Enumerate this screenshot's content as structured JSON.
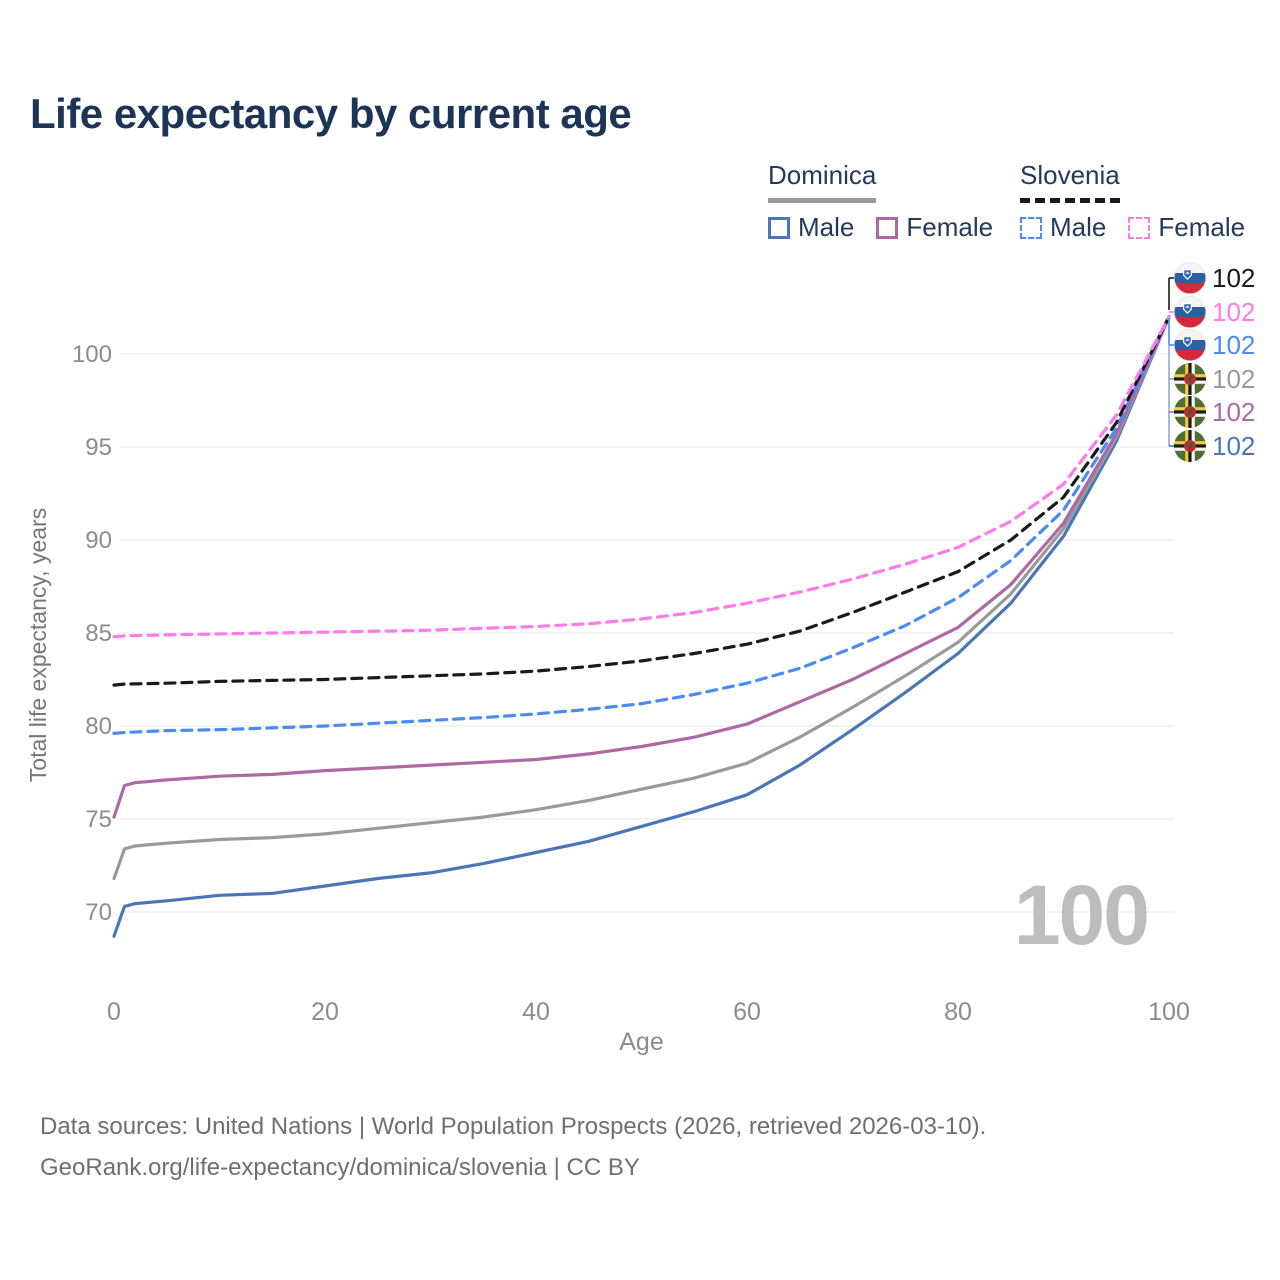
{
  "title": "Life expectancy by current age",
  "watermark_age": "100",
  "legend": {
    "groups": [
      {
        "name": "Dominica",
        "line_style": "solid",
        "swatch_color": "#9a9a9a",
        "items": [
          {
            "label": "Male",
            "color": "#4a76b8",
            "style": "solid"
          },
          {
            "label": "Female",
            "color": "#ad69a4",
            "style": "solid"
          }
        ]
      },
      {
        "name": "Slovenia",
        "line_style": "dashed",
        "swatch_color": "#1a1a1a",
        "items": [
          {
            "label": "Male",
            "color": "#4b8bf4",
            "style": "dashed"
          },
          {
            "label": "Female",
            "color": "#ff7ce8",
            "style": "dashed"
          }
        ]
      }
    ]
  },
  "chart_data": {
    "type": "line",
    "title": "Life expectancy by current age",
    "xlabel": "Age",
    "ylabel": "Total life expectancy, years",
    "x_ticks": [
      0,
      20,
      40,
      60,
      80,
      100
    ],
    "y_ticks": [
      70,
      75,
      80,
      85,
      90,
      95,
      100
    ],
    "xlim": [
      0,
      100
    ],
    "ylim": [
      67.5,
      103
    ],
    "grid": "horizontal",
    "legend_position": "top-right",
    "series": [
      {
        "name": "Dominica Male",
        "country": "Dominica",
        "sex": "Male",
        "color": "#4a76b8",
        "dash": "solid",
        "points": [
          [
            0,
            68.7
          ],
          [
            1,
            70.3
          ],
          [
            2,
            70.45
          ],
          [
            3,
            70.5
          ],
          [
            5,
            70.6
          ],
          [
            10,
            70.9
          ],
          [
            15,
            71.0
          ],
          [
            20,
            71.4
          ],
          [
            25,
            71.8
          ],
          [
            30,
            72.1
          ],
          [
            35,
            72.6
          ],
          [
            40,
            73.2
          ],
          [
            45,
            73.8
          ],
          [
            50,
            74.6
          ],
          [
            55,
            75.4
          ],
          [
            60,
            76.3
          ],
          [
            65,
            77.9
          ],
          [
            70,
            79.8
          ],
          [
            75,
            81.8
          ],
          [
            80,
            83.9
          ],
          [
            85,
            86.6
          ],
          [
            90,
            90.2
          ],
          [
            95,
            95.3
          ],
          [
            100,
            102
          ]
        ]
      },
      {
        "name": "Dominica Both sexes",
        "country": "Dominica",
        "sex": "Both sexes",
        "color": "#9a9a9a",
        "dash": "solid",
        "points": [
          [
            0,
            71.8
          ],
          [
            1,
            73.4
          ],
          [
            2,
            73.55
          ],
          [
            3,
            73.6
          ],
          [
            5,
            73.7
          ],
          [
            10,
            73.9
          ],
          [
            15,
            74.0
          ],
          [
            20,
            74.2
          ],
          [
            25,
            74.5
          ],
          [
            30,
            74.8
          ],
          [
            35,
            75.1
          ],
          [
            40,
            75.5
          ],
          [
            45,
            76.0
          ],
          [
            50,
            76.6
          ],
          [
            55,
            77.2
          ],
          [
            60,
            78.0
          ],
          [
            65,
            79.4
          ],
          [
            70,
            81.0
          ],
          [
            75,
            82.7
          ],
          [
            80,
            84.5
          ],
          [
            85,
            87.1
          ],
          [
            90,
            90.6
          ],
          [
            95,
            95.5
          ],
          [
            100,
            102
          ]
        ]
      },
      {
        "name": "Dominica Female",
        "country": "Dominica",
        "sex": "Female",
        "color": "#ad69a4",
        "dash": "solid",
        "points": [
          [
            0,
            75.1
          ],
          [
            1,
            76.8
          ],
          [
            2,
            76.95
          ],
          [
            3,
            77.0
          ],
          [
            5,
            77.1
          ],
          [
            10,
            77.3
          ],
          [
            15,
            77.4
          ],
          [
            20,
            77.6
          ],
          [
            25,
            77.75
          ],
          [
            30,
            77.9
          ],
          [
            35,
            78.05
          ],
          [
            40,
            78.2
          ],
          [
            45,
            78.5
          ],
          [
            50,
            78.9
          ],
          [
            55,
            79.4
          ],
          [
            60,
            80.1
          ],
          [
            65,
            81.3
          ],
          [
            70,
            82.5
          ],
          [
            75,
            83.9
          ],
          [
            80,
            85.3
          ],
          [
            85,
            87.6
          ],
          [
            90,
            90.9
          ],
          [
            95,
            95.7
          ],
          [
            100,
            102
          ]
        ]
      },
      {
        "name": "Slovenia Male",
        "country": "Slovenia",
        "sex": "Male",
        "color": "#4b8bf4",
        "dash": "dashed",
        "points": [
          [
            0,
            79.6
          ],
          [
            1,
            79.65
          ],
          [
            5,
            79.75
          ],
          [
            10,
            79.8
          ],
          [
            15,
            79.9
          ],
          [
            20,
            80.0
          ],
          [
            25,
            80.15
          ],
          [
            30,
            80.3
          ],
          [
            35,
            80.45
          ],
          [
            40,
            80.65
          ],
          [
            45,
            80.9
          ],
          [
            50,
            81.2
          ],
          [
            55,
            81.7
          ],
          [
            60,
            82.3
          ],
          [
            65,
            83.1
          ],
          [
            70,
            84.2
          ],
          [
            75,
            85.4
          ],
          [
            80,
            86.9
          ],
          [
            85,
            88.9
          ],
          [
            90,
            91.6
          ],
          [
            95,
            96.0
          ],
          [
            100,
            102
          ]
        ]
      },
      {
        "name": "Slovenia Both sexes",
        "country": "Slovenia",
        "sex": "Both sexes",
        "color": "#1a1a1a",
        "dash": "dashed",
        "points": [
          [
            0,
            82.2
          ],
          [
            1,
            82.25
          ],
          [
            5,
            82.3
          ],
          [
            10,
            82.4
          ],
          [
            15,
            82.45
          ],
          [
            20,
            82.5
          ],
          [
            25,
            82.6
          ],
          [
            30,
            82.7
          ],
          [
            35,
            82.8
          ],
          [
            40,
            82.95
          ],
          [
            45,
            83.2
          ],
          [
            50,
            83.5
          ],
          [
            55,
            83.9
          ],
          [
            60,
            84.4
          ],
          [
            65,
            85.1
          ],
          [
            70,
            86.1
          ],
          [
            75,
            87.2
          ],
          [
            80,
            88.3
          ],
          [
            85,
            90.0
          ],
          [
            90,
            92.3
          ],
          [
            95,
            96.3
          ],
          [
            100,
            102
          ]
        ]
      },
      {
        "name": "Slovenia Female",
        "country": "Slovenia",
        "sex": "Female",
        "color": "#ff7ce8",
        "dash": "dashed",
        "points": [
          [
            0,
            84.8
          ],
          [
            1,
            84.85
          ],
          [
            5,
            84.9
          ],
          [
            10,
            84.95
          ],
          [
            15,
            85.0
          ],
          [
            20,
            85.05
          ],
          [
            25,
            85.1
          ],
          [
            30,
            85.15
          ],
          [
            35,
            85.25
          ],
          [
            40,
            85.35
          ],
          [
            45,
            85.5
          ],
          [
            50,
            85.75
          ],
          [
            55,
            86.1
          ],
          [
            60,
            86.6
          ],
          [
            65,
            87.2
          ],
          [
            70,
            87.9
          ],
          [
            75,
            88.7
          ],
          [
            80,
            89.6
          ],
          [
            85,
            91.0
          ],
          [
            90,
            93.0
          ],
          [
            95,
            96.7
          ],
          [
            100,
            102
          ]
        ]
      }
    ]
  },
  "end_labels": [
    {
      "country": "Slovenia",
      "flag": "slovenia",
      "value": "102",
      "color": "#1a1a1a"
    },
    {
      "country": "Slovenia",
      "flag": "slovenia",
      "value": "102",
      "color": "#ff7ce8"
    },
    {
      "country": "Slovenia",
      "flag": "slovenia",
      "value": "102",
      "color": "#4b8bf4"
    },
    {
      "country": "Dominica",
      "flag": "dominica",
      "value": "102",
      "color": "#9a9a9a"
    },
    {
      "country": "Dominica",
      "flag": "dominica",
      "value": "102",
      "color": "#ad69a4"
    },
    {
      "country": "Dominica",
      "flag": "dominica",
      "value": "102",
      "color": "#4a76b8"
    }
  ],
  "footer": {
    "line1": "Data sources: United Nations | World Population Prospects (2026, retrieved 2026-03-10).",
    "line2": "GeoRank.org/life-expectancy/dominica/slovenia | CC BY"
  }
}
